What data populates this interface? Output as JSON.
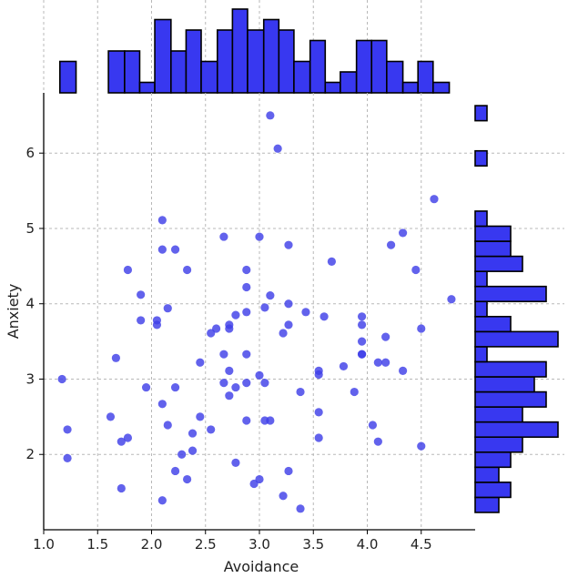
{
  "chart_data": {
    "type": "scatter",
    "xlabel": "Avoidance",
    "ylabel": "Anxiety",
    "xlim": [
      1.0,
      5.0
    ],
    "ylim": [
      1.0,
      6.8
    ],
    "xticks": [
      "1.0",
      "1.5",
      "2.0",
      "2.5",
      "3.0",
      "3.5",
      "4.0",
      "4.5"
    ],
    "xtick_values": [
      1.0,
      1.5,
      2.0,
      2.5,
      3.0,
      3.5,
      4.0,
      4.5
    ],
    "yticks": [
      "2",
      "3",
      "4",
      "5",
      "6"
    ],
    "ytick_values": [
      2,
      3,
      4,
      5,
      6
    ],
    "grid": true,
    "colors": {
      "points": "#4040e8",
      "bars": "#3838f0",
      "bar_edge": "#000000"
    },
    "points": [
      {
        "x": 1.17,
        "y": 3.0
      },
      {
        "x": 1.22,
        "y": 2.33
      },
      {
        "x": 1.22,
        "y": 1.95
      },
      {
        "x": 1.62,
        "y": 2.5
      },
      {
        "x": 1.67,
        "y": 3.28
      },
      {
        "x": 1.72,
        "y": 2.17
      },
      {
        "x": 1.72,
        "y": 1.55
      },
      {
        "x": 1.78,
        "y": 2.22
      },
      {
        "x": 1.78,
        "y": 4.45
      },
      {
        "x": 1.9,
        "y": 4.12
      },
      {
        "x": 1.9,
        "y": 3.78
      },
      {
        "x": 1.95,
        "y": 2.89
      },
      {
        "x": 2.05,
        "y": 3.72
      },
      {
        "x": 2.05,
        "y": 3.78
      },
      {
        "x": 2.1,
        "y": 2.67
      },
      {
        "x": 2.1,
        "y": 1.39
      },
      {
        "x": 2.1,
        "y": 4.72
      },
      {
        "x": 2.1,
        "y": 5.11
      },
      {
        "x": 2.15,
        "y": 2.39
      },
      {
        "x": 2.15,
        "y": 3.94
      },
      {
        "x": 2.22,
        "y": 4.72
      },
      {
        "x": 2.22,
        "y": 2.89
      },
      {
        "x": 2.22,
        "y": 1.78
      },
      {
        "x": 2.28,
        "y": 2.0
      },
      {
        "x": 2.33,
        "y": 1.67
      },
      {
        "x": 2.33,
        "y": 4.45
      },
      {
        "x": 2.38,
        "y": 2.28
      },
      {
        "x": 2.38,
        "y": 2.05
      },
      {
        "x": 2.45,
        "y": 2.5
      },
      {
        "x": 2.45,
        "y": 3.22
      },
      {
        "x": 2.55,
        "y": 2.33
      },
      {
        "x": 2.55,
        "y": 3.61
      },
      {
        "x": 2.6,
        "y": 3.67
      },
      {
        "x": 2.67,
        "y": 3.33
      },
      {
        "x": 2.67,
        "y": 2.95
      },
      {
        "x": 2.67,
        "y": 4.89
      },
      {
        "x": 2.72,
        "y": 3.67
      },
      {
        "x": 2.72,
        "y": 3.11
      },
      {
        "x": 2.72,
        "y": 2.78
      },
      {
        "x": 2.72,
        "y": 3.72
      },
      {
        "x": 2.78,
        "y": 2.89
      },
      {
        "x": 2.78,
        "y": 3.85
      },
      {
        "x": 2.78,
        "y": 1.89
      },
      {
        "x": 2.88,
        "y": 4.22
      },
      {
        "x": 2.88,
        "y": 2.45
      },
      {
        "x": 2.88,
        "y": 3.33
      },
      {
        "x": 2.88,
        "y": 3.89
      },
      {
        "x": 2.88,
        "y": 4.45
      },
      {
        "x": 2.88,
        "y": 2.95
      },
      {
        "x": 2.95,
        "y": 1.61
      },
      {
        "x": 3.0,
        "y": 1.67
      },
      {
        "x": 3.0,
        "y": 3.05
      },
      {
        "x": 3.0,
        "y": 4.89
      },
      {
        "x": 3.05,
        "y": 2.95
      },
      {
        "x": 3.05,
        "y": 3.95
      },
      {
        "x": 3.05,
        "y": 2.45
      },
      {
        "x": 3.1,
        "y": 4.11
      },
      {
        "x": 3.1,
        "y": 6.5
      },
      {
        "x": 3.1,
        "y": 2.45
      },
      {
        "x": 3.17,
        "y": 6.06
      },
      {
        "x": 3.22,
        "y": 3.61
      },
      {
        "x": 3.22,
        "y": 1.45
      },
      {
        "x": 3.27,
        "y": 3.72
      },
      {
        "x": 3.27,
        "y": 4.0
      },
      {
        "x": 3.27,
        "y": 1.78
      },
      {
        "x": 3.27,
        "y": 4.78
      },
      {
        "x": 3.38,
        "y": 2.83
      },
      {
        "x": 3.38,
        "y": 1.28
      },
      {
        "x": 3.43,
        "y": 3.89
      },
      {
        "x": 3.55,
        "y": 3.11
      },
      {
        "x": 3.55,
        "y": 3.06
      },
      {
        "x": 3.55,
        "y": 2.56
      },
      {
        "x": 3.55,
        "y": 2.22
      },
      {
        "x": 3.6,
        "y": 3.83
      },
      {
        "x": 3.67,
        "y": 4.56
      },
      {
        "x": 3.78,
        "y": 3.17
      },
      {
        "x": 3.88,
        "y": 2.83
      },
      {
        "x": 3.95,
        "y": 3.83
      },
      {
        "x": 3.95,
        "y": 3.72
      },
      {
        "x": 3.95,
        "y": 3.5
      },
      {
        "x": 3.95,
        "y": 3.33
      },
      {
        "x": 3.95,
        "y": 3.33
      },
      {
        "x": 4.05,
        "y": 2.39
      },
      {
        "x": 4.1,
        "y": 2.17
      },
      {
        "x": 4.1,
        "y": 3.22
      },
      {
        "x": 4.17,
        "y": 3.22
      },
      {
        "x": 4.17,
        "y": 3.56
      },
      {
        "x": 4.22,
        "y": 4.78
      },
      {
        "x": 4.33,
        "y": 4.94
      },
      {
        "x": 4.33,
        "y": 3.11
      },
      {
        "x": 4.45,
        "y": 4.45
      },
      {
        "x": 4.5,
        "y": 3.67
      },
      {
        "x": 4.5,
        "y": 2.11
      },
      {
        "x": 4.62,
        "y": 5.39
      },
      {
        "x": 4.78,
        "y": 4.06
      }
    ],
    "x_histogram": {
      "bin_edges": [
        1.15,
        1.3,
        1.45,
        1.6,
        1.75,
        1.89,
        2.03,
        2.18,
        2.32,
        2.46,
        2.61,
        2.75,
        2.89,
        3.04,
        3.18,
        3.32,
        3.47,
        3.61,
        3.75,
        3.9,
        4.04,
        4.18,
        4.33,
        4.47,
        4.61,
        4.76
      ],
      "counts": [
        3,
        0,
        0,
        4,
        4,
        1,
        7,
        4,
        6,
        3,
        6,
        8,
        6,
        7,
        6,
        3,
        5,
        1,
        2,
        5,
        5,
        3,
        1,
        3,
        1
      ]
    },
    "y_histogram": {
      "bin_edges": [
        1.23,
        1.43,
        1.63,
        1.83,
        2.03,
        2.23,
        2.43,
        2.63,
        2.83,
        3.03,
        3.23,
        3.43,
        3.63,
        3.83,
        4.03,
        4.23,
        4.43,
        4.63,
        4.83,
        5.03,
        5.23,
        5.43,
        5.63,
        5.83,
        6.03,
        6.23,
        6.43,
        6.63
      ],
      "counts": [
        2,
        3,
        2,
        3,
        4,
        7,
        4,
        6,
        5,
        6,
        1,
        7,
        3,
        1,
        6,
        1,
        4,
        3,
        3,
        1,
        0,
        0,
        0,
        1,
        0,
        0,
        1
      ]
    }
  }
}
